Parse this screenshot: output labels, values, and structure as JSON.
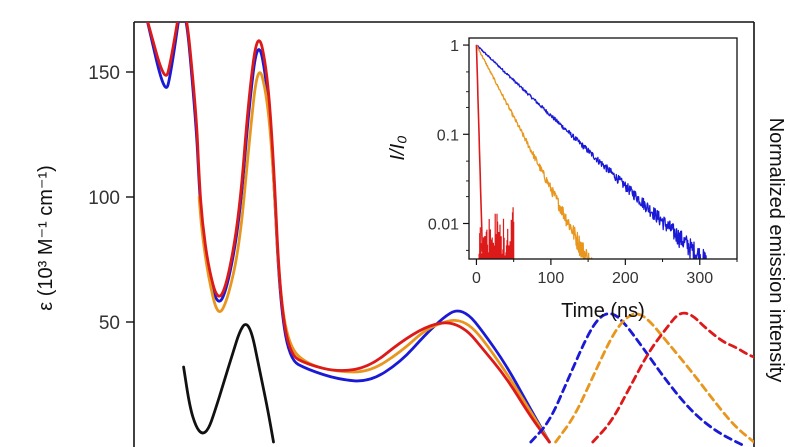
{
  "chart_data": [
    {
      "type": "line",
      "panel": "main",
      "ylabel_left": "ε (10³ M⁻¹ cm⁻¹)",
      "ylabel_right": "Normalized emission intensity",
      "xlabel": "",
      "ylim": [
        0,
        170
      ],
      "yticks": [
        50,
        100,
        150
      ],
      "xlim": [
        0,
        100
      ],
      "x_tick_labels": [],
      "note": "x-axis labels are cropped out of view; x values are relative positions",
      "series": [
        {
          "color": "#1a1ad6",
          "style": "solid",
          "kind": "absorption",
          "points": [
            [
              2,
              172
            ],
            [
              5,
              140
            ],
            [
              6,
              150
            ],
            [
              8,
              185
            ],
            [
              10,
              130
            ],
            [
              10.5,
              105
            ],
            [
              11,
              88
            ],
            [
              12,
              70
            ],
            [
              13.5,
              56
            ],
            [
              15,
              63
            ],
            [
              17,
              90
            ],
            [
              18.5,
              135
            ],
            [
              20,
              165
            ],
            [
              21.5,
              145
            ],
            [
              22.5,
              110
            ],
            [
              23.5,
              60
            ],
            [
              25,
              35
            ],
            [
              28,
              31
            ],
            [
              33,
              27
            ],
            [
              38,
              26
            ],
            [
              43,
              34
            ],
            [
              47,
              45
            ],
            [
              50,
              52
            ],
            [
              52,
              55
            ],
            [
              54,
              53
            ],
            [
              56,
              47
            ],
            [
              60,
              33
            ],
            [
              64,
              15
            ],
            [
              67,
              2
            ]
          ]
        },
        {
          "color": "#e8961e",
          "style": "solid",
          "kind": "absorption",
          "points": [
            [
              10.5,
              100
            ],
            [
              11,
              85
            ],
            [
              12,
              68
            ],
            [
              13.5,
              52
            ],
            [
              15,
              58
            ],
            [
              17,
              80
            ],
            [
              18.5,
              120
            ],
            [
              20,
              155
            ],
            [
              21.5,
              140
            ],
            [
              22.5,
              110
            ],
            [
              23.5,
              62
            ],
            [
              25,
              40
            ],
            [
              28,
              33
            ],
            [
              33,
              30
            ],
            [
              38,
              30
            ],
            [
              43,
              38
            ],
            [
              47,
              47
            ],
            [
              50,
              50
            ],
            [
              52,
              51
            ],
            [
              54,
              49
            ],
            [
              56,
              44
            ],
            [
              60,
              30
            ],
            [
              64,
              14
            ],
            [
              67,
              2
            ]
          ]
        },
        {
          "color": "#dd1a1a",
          "style": "solid",
          "kind": "absorption",
          "points": [
            [
              2,
              172
            ],
            [
              5,
              145
            ],
            [
              6,
              155
            ],
            [
              8,
              185
            ],
            [
              10,
              135
            ],
            [
              10.5,
              108
            ],
            [
              11,
              90
            ],
            [
              12,
              72
            ],
            [
              13.5,
              58
            ],
            [
              15,
              65
            ],
            [
              17,
              93
            ],
            [
              18.5,
              140
            ],
            [
              20,
              168
            ],
            [
              21.5,
              150
            ],
            [
              22.5,
              115
            ],
            [
              23.5,
              62
            ],
            [
              25,
              37
            ],
            [
              28,
              33
            ],
            [
              33,
              30
            ],
            [
              38,
              32
            ],
            [
              43,
              42
            ],
            [
              47,
              48
            ],
            [
              50,
              50
            ],
            [
              52,
              49
            ],
            [
              54,
              46
            ],
            [
              56,
              40
            ],
            [
              60,
              28
            ],
            [
              64,
              12
            ],
            [
              67,
              2
            ]
          ]
        },
        {
          "color": "#111111",
          "style": "solid",
          "kind": "absorption",
          "points": [
            [
              8,
              32
            ],
            [
              9,
              16
            ],
            [
              10,
              8
            ],
            [
              11,
              5
            ],
            [
              12,
              7
            ],
            [
              13,
              14
            ],
            [
              14.5,
              26
            ],
            [
              16,
              38
            ],
            [
              17,
              46
            ],
            [
              18,
              50
            ],
            [
              19,
              46
            ],
            [
              20,
              34
            ],
            [
              21.5,
              16
            ],
            [
              22.5,
              2
            ]
          ]
        },
        {
          "color": "#1a1ad6",
          "style": "dashed",
          "kind": "emission",
          "points": [
            [
              64,
              2
            ],
            [
              67,
              10
            ],
            [
              70,
              27
            ],
            [
              73,
              44
            ],
            [
              75,
              52
            ],
            [
              77,
              54
            ],
            [
              79,
              50
            ],
            [
              82,
              40
            ],
            [
              86,
              26
            ],
            [
              90,
              14
            ],
            [
              94,
              6
            ],
            [
              98,
              1
            ]
          ]
        },
        {
          "color": "#e8961e",
          "style": "dashed",
          "kind": "emission",
          "points": [
            [
              68,
              2
            ],
            [
              71,
              12
            ],
            [
              74,
              28
            ],
            [
              77,
              44
            ],
            [
              79,
              51
            ],
            [
              81,
              54
            ],
            [
              83,
              51
            ],
            [
              86,
              42
            ],
            [
              90,
              30
            ],
            [
              94,
              17
            ],
            [
              97,
              8
            ],
            [
              100,
              2
            ]
          ]
        },
        {
          "color": "#dd1a1a",
          "style": "dashed",
          "kind": "emission",
          "points": [
            [
              74,
              2
            ],
            [
              77,
              10
            ],
            [
              80,
              24
            ],
            [
              83,
              38
            ],
            [
              86,
              48
            ],
            [
              88,
              54
            ],
            [
              90,
              53
            ],
            [
              92,
              48
            ],
            [
              95,
              42
            ],
            [
              97,
              40
            ],
            [
              99,
              37
            ],
            [
              100,
              36
            ]
          ]
        }
      ]
    },
    {
      "type": "line",
      "panel": "inset",
      "xlabel": "Time (ns)",
      "ylabel": "I/I₀",
      "yscale": "log",
      "ylim": [
        0.004,
        1.2
      ],
      "xlim": [
        -10,
        350
      ],
      "xticks": [
        "0",
        "100",
        "200",
        "300"
      ],
      "yticks": [
        "1",
        "0.1",
        "0.01"
      ],
      "series": [
        {
          "color": "#1a1ad6",
          "decay_ns": 55,
          "end_ns": 310
        },
        {
          "color": "#e8961e",
          "decay_ns": 27,
          "end_ns": 160
        },
        {
          "color": "#dd1a1a",
          "decay_ns": 1.5,
          "end_ns": 50,
          "noise_floor": true
        }
      ]
    }
  ]
}
